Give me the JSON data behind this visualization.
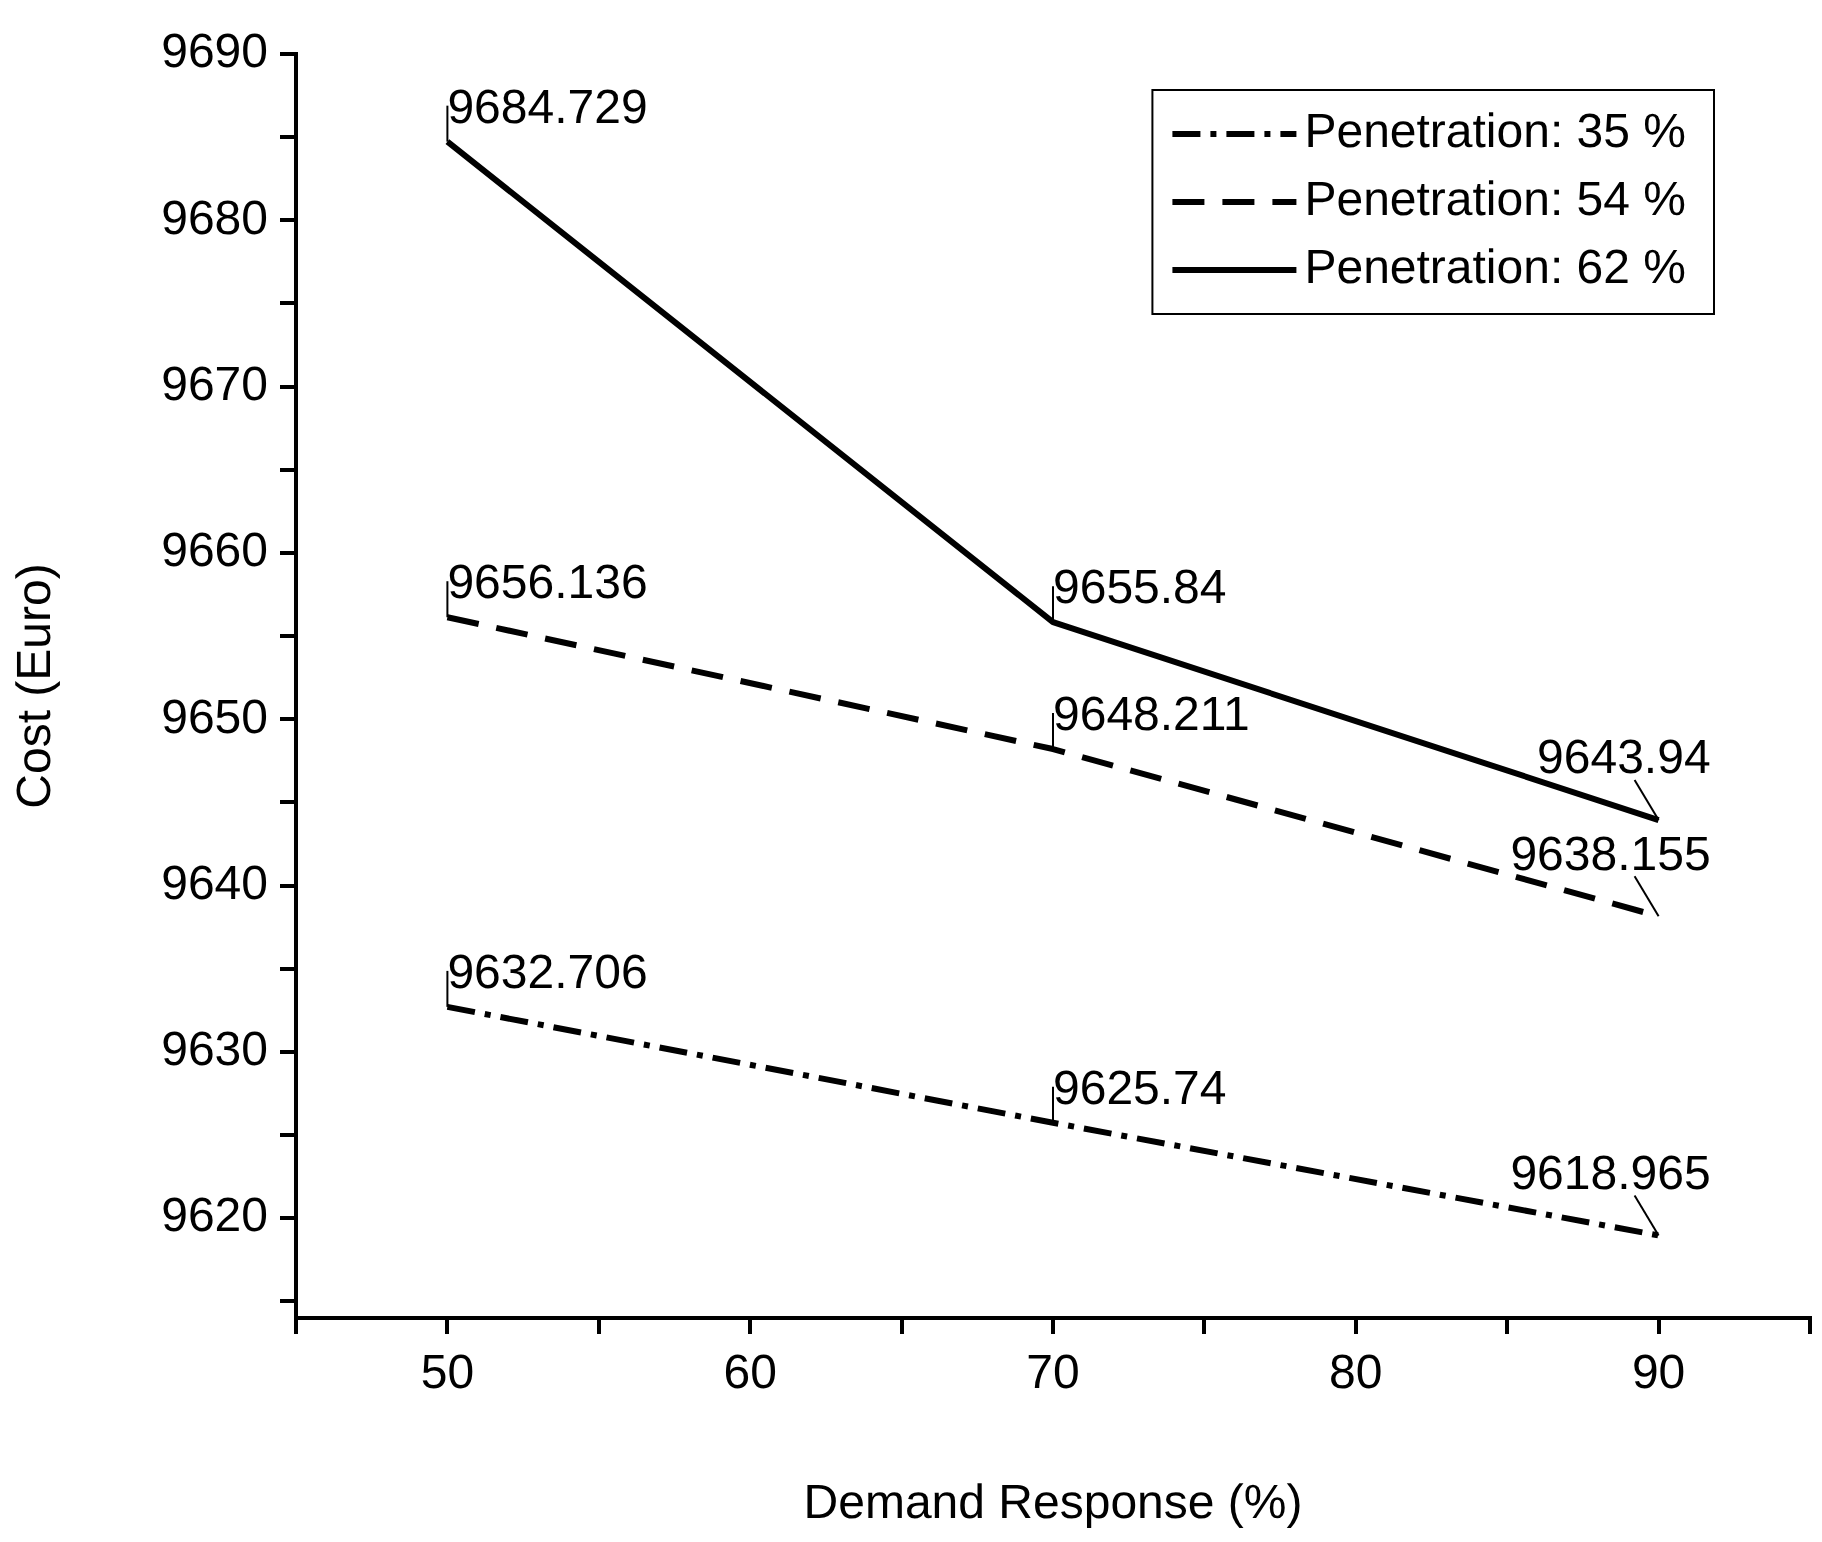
{
  "chart_data": {
    "type": "line",
    "xlabel": "Demand Response (%)",
    "ylabel": "Cost (Euro)",
    "x": [
      50,
      70,
      90
    ],
    "series": [
      {
        "name": "Penetration: 35 %",
        "color": "#000000",
        "line_style": "dashdot",
        "values": [
          9632.706,
          9625.74,
          9618.965
        ]
      },
      {
        "name": "Penetration: 54 %",
        "color": "#000000",
        "line_style": "dashed",
        "values": [
          9656.136,
          9648.211,
          9638.155
        ]
      },
      {
        "name": "Penetration: 62 %",
        "color": "#000000",
        "line_style": "solid",
        "values": [
          9684.729,
          9655.84,
          9643.94
        ]
      }
    ],
    "xlim": [
      45,
      95
    ],
    "xticks": [
      {
        "value": 45,
        "label": null
      },
      50,
      {
        "value": 55,
        "label": null
      },
      60,
      {
        "value": 65,
        "label": null
      },
      70,
      {
        "value": 75,
        "label": null
      },
      80,
      {
        "value": 85,
        "label": null
      },
      90,
      {
        "value": 95,
        "label": null
      }
    ],
    "ylim": [
      9614,
      9690
    ],
    "yticks": [
      {
        "value": 9615,
        "label": null
      },
      9620,
      {
        "value": 9625,
        "label": null
      },
      9630,
      {
        "value": 9635,
        "label": null
      },
      9640,
      {
        "value": 9645,
        "label": null
      },
      9650,
      {
        "value": 9655,
        "label": null
      },
      9660,
      {
        "value": 9665,
        "label": null
      },
      9670,
      {
        "value": 9675,
        "label": null
      },
      9680,
      {
        "value": 9685,
        "label": null
      },
      9690
    ],
    "data_labels": true,
    "grid": false,
    "legend": "top right",
    "marker": "none"
  }
}
